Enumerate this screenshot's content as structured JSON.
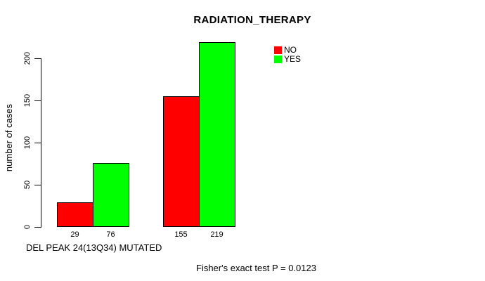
{
  "chart_data": {
    "type": "bar",
    "title": "RADIATION_THERAPY",
    "ylabel": "number of cases",
    "xlabel": "DEL PEAK 24(13Q34) MUTATED",
    "annotation": "Fisher's exact test P = 0.0123",
    "yticks": [
      0,
      50,
      100,
      150,
      200
    ],
    "ylim": [
      0,
      230
    ],
    "grid": false,
    "legend_position": "top-right",
    "bar_value_labels_shown": true,
    "categories": [
      "",
      ""
    ],
    "series": [
      {
        "name": "NO",
        "color": "#ff0000",
        "values": [
          29,
          155
        ]
      },
      {
        "name": "YES",
        "color": "#00ff00",
        "values": [
          76,
          219
        ]
      }
    ]
  },
  "colors": {
    "background": "#ffffff",
    "axis": "#000000",
    "bar_border": "#000000",
    "no_series": "#ff0000",
    "yes_series": "#00ff00"
  }
}
